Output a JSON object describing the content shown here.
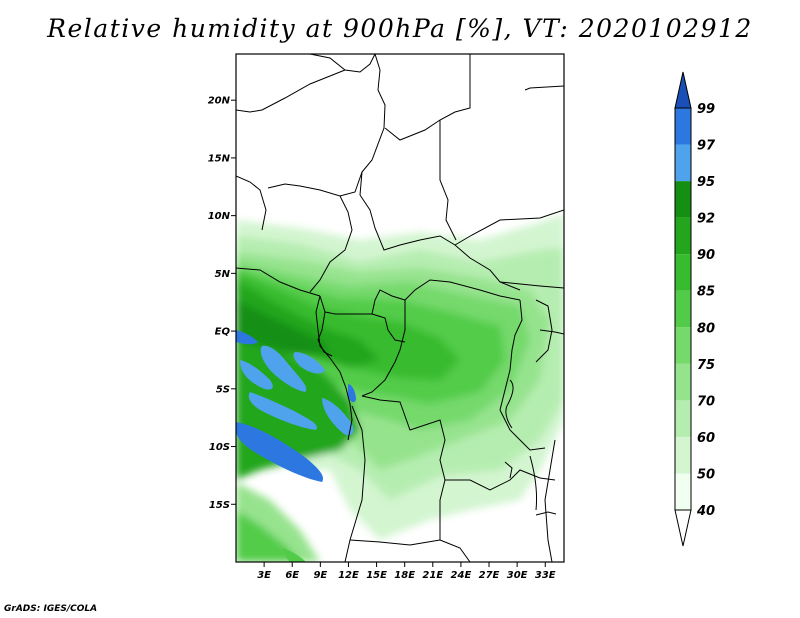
{
  "title": "Relative humidity at 900hPa [%], VT: 2020102912",
  "footer": "GrADS: IGES/COLA",
  "map": {
    "lon_range": [
      0,
      35
    ],
    "lat_range": [
      -20,
      24
    ],
    "lat_ticks": [
      {
        "lat": 20,
        "label": "20N"
      },
      {
        "lat": 15,
        "label": "15N"
      },
      {
        "lat": 10,
        "label": "10N"
      },
      {
        "lat": 5,
        "label": "5N"
      },
      {
        "lat": 0,
        "label": "EQ"
      },
      {
        "lat": -5,
        "label": "5S"
      },
      {
        "lat": -10,
        "label": "10S"
      },
      {
        "lat": -15,
        "label": "15S"
      }
    ],
    "lon_ticks": [
      {
        "lon": 3,
        "label": "3E"
      },
      {
        "lon": 6,
        "label": "6E"
      },
      {
        "lon": 9,
        "label": "9E"
      },
      {
        "lon": 12,
        "label": "12E"
      },
      {
        "lon": 15,
        "label": "15E"
      },
      {
        "lon": 18,
        "label": "18E"
      },
      {
        "lon": 21,
        "label": "21E"
      },
      {
        "lon": 24,
        "label": "24E"
      },
      {
        "lon": 27,
        "label": "27E"
      },
      {
        "lon": 30,
        "label": "30E"
      },
      {
        "lon": 33,
        "label": "33E"
      }
    ]
  },
  "colorbar": {
    "levels": [
      {
        "label": "40",
        "color": "#f0fff0"
      },
      {
        "label": "50",
        "color": "#d3f5d0"
      },
      {
        "label": "60",
        "color": "#b5edb0"
      },
      {
        "label": "70",
        "color": "#96e38e"
      },
      {
        "label": "75",
        "color": "#75d96c"
      },
      {
        "label": "80",
        "color": "#52cc48"
      },
      {
        "label": "85",
        "color": "#37bb2f"
      },
      {
        "label": "90",
        "color": "#23a61e"
      },
      {
        "label": "92",
        "color": "#158f12"
      },
      {
        "label": "95",
        "color": "#4fa3ec"
      },
      {
        "label": "97",
        "color": "#2d78e0"
      },
      {
        "label": "99",
        "color": "#1b55c4"
      }
    ],
    "below_color": "#ffffff",
    "above_color": "#1b4fb8"
  }
}
